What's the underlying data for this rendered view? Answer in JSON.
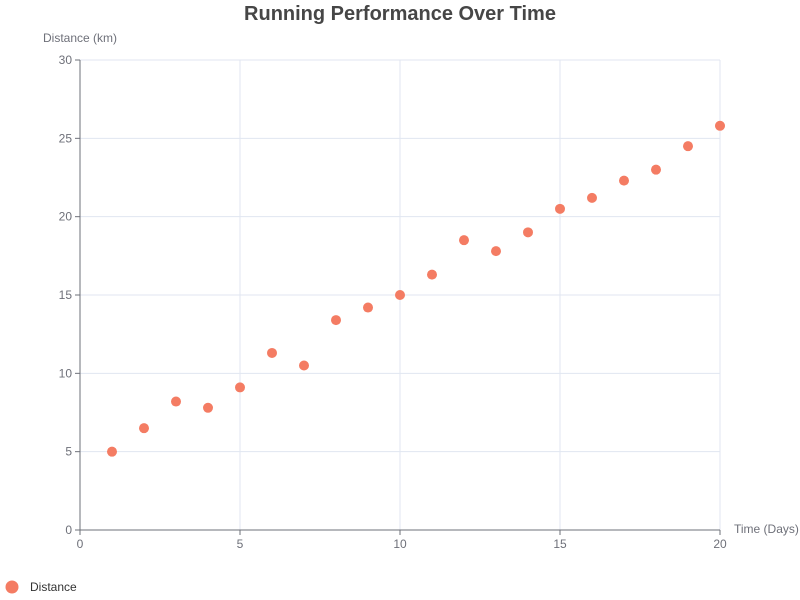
{
  "chart_data": {
    "type": "scatter",
    "title": "Running Performance Over Time",
    "xlabel": "Time (Days)",
    "ylabel": "Distance (km)",
    "xlim": [
      0,
      20
    ],
    "ylim": [
      0,
      30
    ],
    "xticks": [
      0,
      5,
      10,
      15,
      20
    ],
    "yticks": [
      0,
      5,
      10,
      15,
      20,
      25,
      30
    ],
    "grid": true,
    "legend_position": "bottom-left",
    "series": [
      {
        "name": "Distance",
        "color": "#f47c63",
        "x": [
          1,
          2,
          3,
          4,
          5,
          6,
          7,
          8,
          9,
          10,
          11,
          12,
          13,
          14,
          15,
          16,
          17,
          18,
          19,
          20
        ],
        "y": [
          5.0,
          6.5,
          8.2,
          7.8,
          9.1,
          11.3,
          10.5,
          13.4,
          14.2,
          15.0,
          16.3,
          18.5,
          17.8,
          19.0,
          20.5,
          21.2,
          22.3,
          23.0,
          24.5,
          25.8
        ]
      }
    ]
  }
}
